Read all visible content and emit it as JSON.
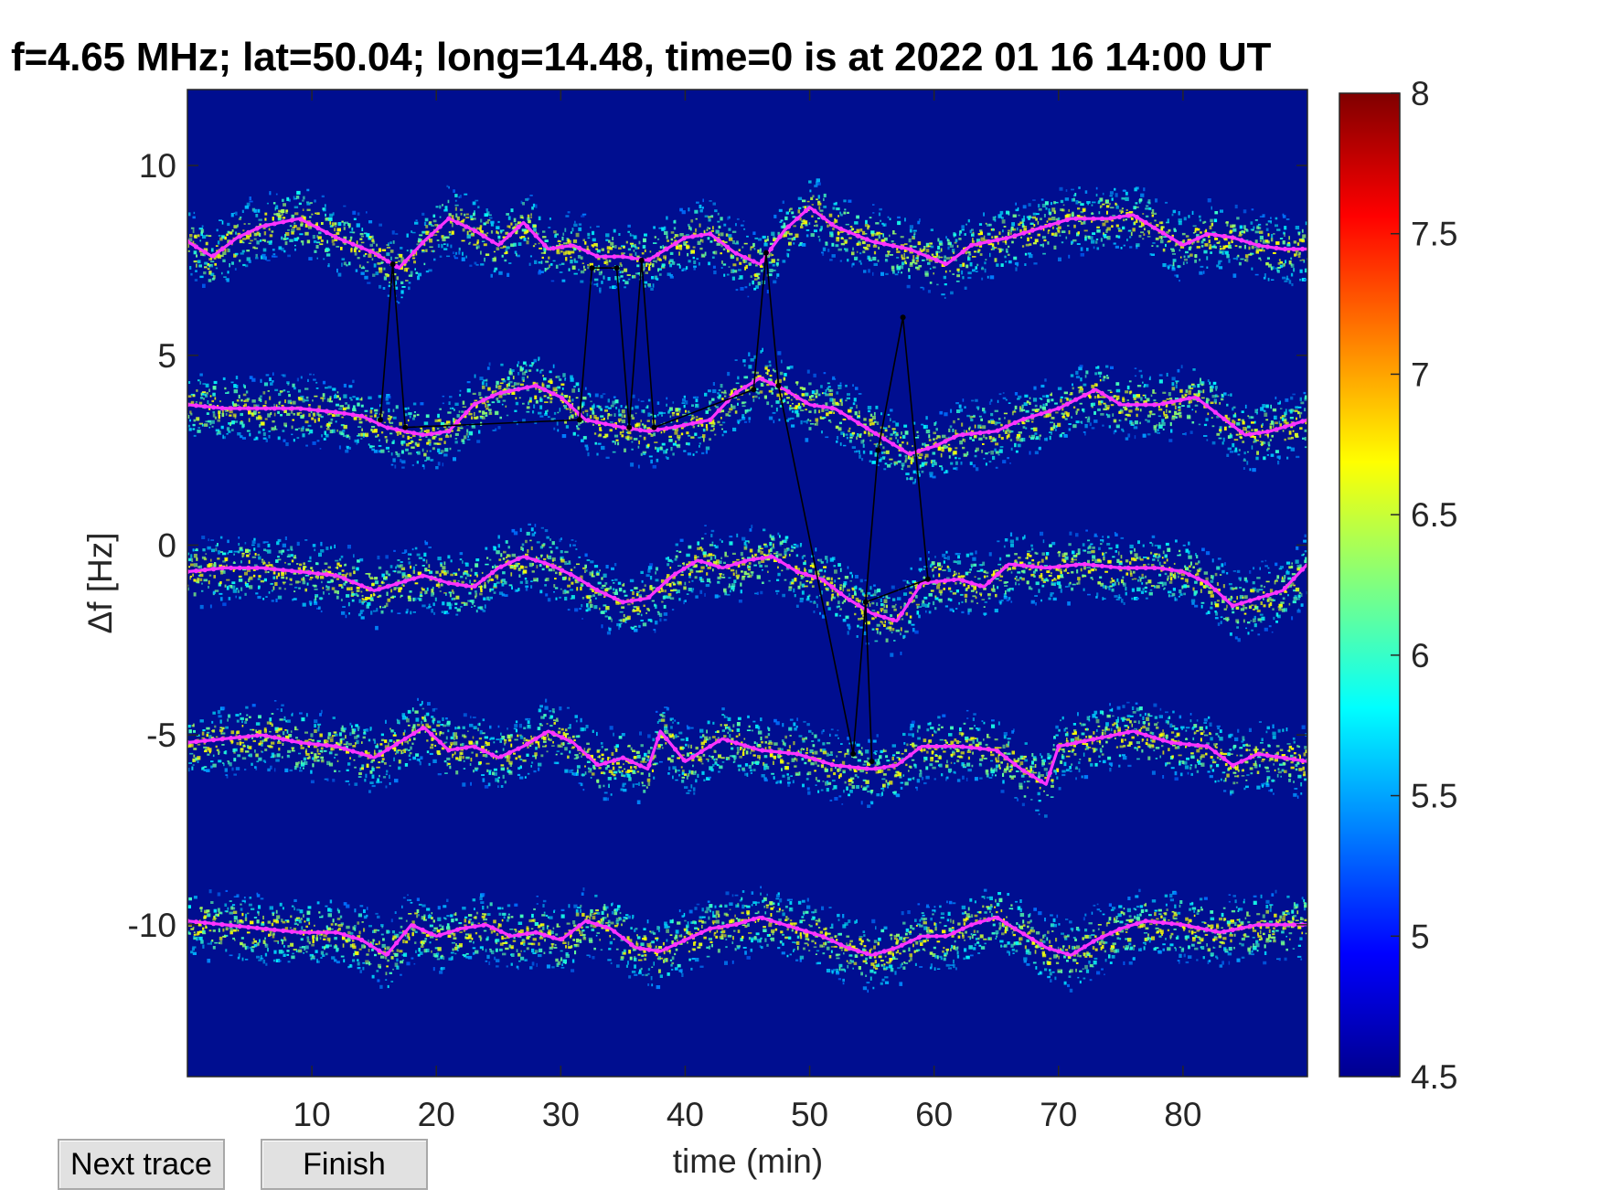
{
  "title": "f=4.65 MHz;  lat=50.04; long=14.48, time=0 is at 2022 01 16 14:00 UT",
  "buttons": {
    "next_trace": "Next trace",
    "finish": "Finish"
  },
  "colors": {
    "background_field": "#000e90",
    "trace": "#ff33ff",
    "manual_trace": "#000000",
    "colormap": "jet"
  },
  "chart_data": {
    "type": "heatmap",
    "title": "f=4.65 MHz;  lat=50.04; long=14.48, time=0 is at 2022 01 16 14:00 UT",
    "xlabel": "time (min)",
    "ylabel": "Δf [Hz]",
    "xlim": [
      0,
      90
    ],
    "ylim": [
      -14,
      12
    ],
    "xticks": [
      10,
      20,
      30,
      40,
      50,
      60,
      70,
      80
    ],
    "yticks": [
      10,
      5,
      0,
      -5,
      -10
    ],
    "colorbar": {
      "min": 4.5,
      "max": 8,
      "ticks": [
        8,
        7.5,
        7,
        6.5,
        6,
        5.5,
        5,
        4.5
      ]
    },
    "series": [
      {
        "points": [
          [
            0,
            8.0
          ],
          [
            2,
            7.6
          ],
          [
            4,
            8.1
          ],
          [
            6,
            8.4
          ],
          [
            9,
            8.6
          ],
          [
            12,
            8.1
          ],
          [
            15,
            7.7
          ],
          [
            17,
            7.3
          ],
          [
            19,
            8.0
          ],
          [
            21,
            8.6
          ],
          [
            23,
            8.3
          ],
          [
            25,
            7.9
          ],
          [
            27,
            8.5
          ],
          [
            29,
            7.8
          ],
          [
            31,
            7.9
          ],
          [
            33,
            7.6
          ],
          [
            35,
            7.6
          ],
          [
            37,
            7.5
          ],
          [
            40,
            8.1
          ],
          [
            42,
            8.2
          ],
          [
            44,
            7.7
          ],
          [
            46,
            7.4
          ],
          [
            48,
            8.3
          ],
          [
            50,
            8.9
          ],
          [
            52,
            8.4
          ],
          [
            55,
            8.0
          ],
          [
            58,
            7.8
          ],
          [
            61,
            7.4
          ],
          [
            63,
            7.9
          ],
          [
            66,
            8.1
          ],
          [
            68,
            8.3
          ],
          [
            71,
            8.6
          ],
          [
            74,
            8.6
          ],
          [
            76,
            8.7
          ],
          [
            78,
            8.3
          ],
          [
            80,
            7.9
          ],
          [
            82,
            8.2
          ],
          [
            84,
            8.1
          ],
          [
            86,
            7.9
          ],
          [
            88,
            7.8
          ],
          [
            90,
            7.8
          ]
        ]
      },
      {
        "points": [
          [
            0,
            3.7
          ],
          [
            3,
            3.6
          ],
          [
            6,
            3.6
          ],
          [
            9,
            3.6
          ],
          [
            12,
            3.5
          ],
          [
            14,
            3.4
          ],
          [
            16,
            3.1
          ],
          [
            19,
            2.9
          ],
          [
            21,
            3.0
          ],
          [
            23,
            3.7
          ],
          [
            25,
            4.0
          ],
          [
            28,
            4.2
          ],
          [
            30,
            3.9
          ],
          [
            32,
            3.3
          ],
          [
            35,
            3.1
          ],
          [
            37,
            3.0
          ],
          [
            39,
            3.1
          ],
          [
            42,
            3.3
          ],
          [
            44,
            4.0
          ],
          [
            46,
            4.4
          ],
          [
            48,
            4.1
          ],
          [
            50,
            3.7
          ],
          [
            52,
            3.6
          ],
          [
            54,
            3.2
          ],
          [
            56,
            2.8
          ],
          [
            58,
            2.4
          ],
          [
            60,
            2.6
          ],
          [
            62,
            2.9
          ],
          [
            65,
            3.0
          ],
          [
            67,
            3.3
          ],
          [
            70,
            3.6
          ],
          [
            73,
            4.1
          ],
          [
            75,
            3.7
          ],
          [
            78,
            3.7
          ],
          [
            81,
            3.9
          ],
          [
            83,
            3.4
          ],
          [
            85,
            2.9
          ],
          [
            87,
            3.0
          ],
          [
            90,
            3.3
          ]
        ]
      },
      {
        "points": [
          [
            0,
            -0.7
          ],
          [
            3,
            -0.6
          ],
          [
            6,
            -0.6
          ],
          [
            9,
            -0.7
          ],
          [
            12,
            -0.8
          ],
          [
            15,
            -1.2
          ],
          [
            17,
            -1.0
          ],
          [
            19,
            -0.8
          ],
          [
            21,
            -1.0
          ],
          [
            23,
            -1.1
          ],
          [
            25,
            -0.6
          ],
          [
            27,
            -0.3
          ],
          [
            29,
            -0.5
          ],
          [
            31,
            -0.8
          ],
          [
            33,
            -1.2
          ],
          [
            35,
            -1.5
          ],
          [
            37,
            -1.4
          ],
          [
            39,
            -0.8
          ],
          [
            41,
            -0.4
          ],
          [
            43,
            -0.6
          ],
          [
            45,
            -0.4
          ],
          [
            47,
            -0.3
          ],
          [
            49,
            -0.7
          ],
          [
            51,
            -0.9
          ],
          [
            53,
            -1.4
          ],
          [
            55,
            -1.8
          ],
          [
            57,
            -2.0
          ],
          [
            59,
            -1.0
          ],
          [
            62,
            -0.9
          ],
          [
            64,
            -1.1
          ],
          [
            66,
            -0.5
          ],
          [
            69,
            -0.6
          ],
          [
            72,
            -0.5
          ],
          [
            75,
            -0.6
          ],
          [
            78,
            -0.6
          ],
          [
            80,
            -0.7
          ],
          [
            82,
            -1.0
          ],
          [
            84,
            -1.6
          ],
          [
            86,
            -1.4
          ],
          [
            88,
            -1.2
          ],
          [
            90,
            -0.5
          ]
        ]
      },
      {
        "points": [
          [
            0,
            -5.2
          ],
          [
            3,
            -5.1
          ],
          [
            6,
            -5.0
          ],
          [
            9,
            -5.2
          ],
          [
            12,
            -5.3
          ],
          [
            15,
            -5.6
          ],
          [
            17,
            -5.2
          ],
          [
            19,
            -4.8
          ],
          [
            21,
            -5.4
          ],
          [
            23,
            -5.3
          ],
          [
            25,
            -5.6
          ],
          [
            27,
            -5.3
          ],
          [
            29,
            -4.9
          ],
          [
            31,
            -5.2
          ],
          [
            33,
            -5.8
          ],
          [
            35,
            -5.6
          ],
          [
            37,
            -5.9
          ],
          [
            38,
            -4.9
          ],
          [
            40,
            -5.7
          ],
          [
            43,
            -5.1
          ],
          [
            46,
            -5.4
          ],
          [
            49,
            -5.5
          ],
          [
            52,
            -5.8
          ],
          [
            55,
            -5.9
          ],
          [
            57,
            -5.8
          ],
          [
            59,
            -5.3
          ],
          [
            62,
            -5.3
          ],
          [
            65,
            -5.4
          ],
          [
            67,
            -5.9
          ],
          [
            69,
            -6.3
          ],
          [
            70,
            -5.3
          ],
          [
            73,
            -5.1
          ],
          [
            76,
            -4.9
          ],
          [
            79,
            -5.2
          ],
          [
            82,
            -5.3
          ],
          [
            84,
            -5.8
          ],
          [
            86,
            -5.5
          ],
          [
            88,
            -5.6
          ],
          [
            90,
            -5.7
          ]
        ]
      },
      {
        "points": [
          [
            0,
            -9.9
          ],
          [
            3,
            -10.0
          ],
          [
            6,
            -10.1
          ],
          [
            9,
            -10.2
          ],
          [
            12,
            -10.2
          ],
          [
            14,
            -10.4
          ],
          [
            16,
            -10.8
          ],
          [
            18,
            -10.0
          ],
          [
            20,
            -10.3
          ],
          [
            22,
            -10.1
          ],
          [
            24,
            -10.0
          ],
          [
            26,
            -10.3
          ],
          [
            28,
            -10.2
          ],
          [
            30,
            -10.4
          ],
          [
            32,
            -9.9
          ],
          [
            34,
            -10.1
          ],
          [
            36,
            -10.6
          ],
          [
            38,
            -10.7
          ],
          [
            40,
            -10.4
          ],
          [
            42,
            -10.1
          ],
          [
            44,
            -10.0
          ],
          [
            46,
            -9.8
          ],
          [
            48,
            -10.0
          ],
          [
            51,
            -10.3
          ],
          [
            53,
            -10.6
          ],
          [
            55,
            -10.8
          ],
          [
            57,
            -10.6
          ],
          [
            59,
            -10.3
          ],
          [
            61,
            -10.3
          ],
          [
            63,
            -10.0
          ],
          [
            65,
            -9.8
          ],
          [
            67,
            -10.2
          ],
          [
            69,
            -10.6
          ],
          [
            71,
            -10.8
          ],
          [
            73,
            -10.4
          ],
          [
            75,
            -10.1
          ],
          [
            77,
            -9.9
          ],
          [
            80,
            -10.0
          ],
          [
            83,
            -10.2
          ],
          [
            86,
            -10.0
          ],
          [
            88,
            -10.0
          ],
          [
            90,
            -10.0
          ]
        ]
      }
    ],
    "manual_trace": {
      "points": [
        [
          15.5,
          3.3
        ],
        [
          16.5,
          7.4
        ],
        [
          17.5,
          3.1
        ],
        [
          31.5,
          3.3
        ],
        [
          32.5,
          7.3
        ],
        [
          34.5,
          7.3
        ],
        [
          35.5,
          3.1
        ],
        [
          36.5,
          7.5
        ],
        [
          37.5,
          3.1
        ],
        [
          45.5,
          4.1
        ],
        [
          46.5,
          7.7
        ],
        [
          47.5,
          4.2
        ],
        [
          53.5,
          -5.5
        ],
        [
          55.5,
          2.5
        ],
        [
          57.5,
          6.0
        ],
        [
          59.5,
          -0.9
        ],
        [
          54.5,
          -1.5
        ],
        [
          55.0,
          -5.7
        ]
      ]
    }
  }
}
